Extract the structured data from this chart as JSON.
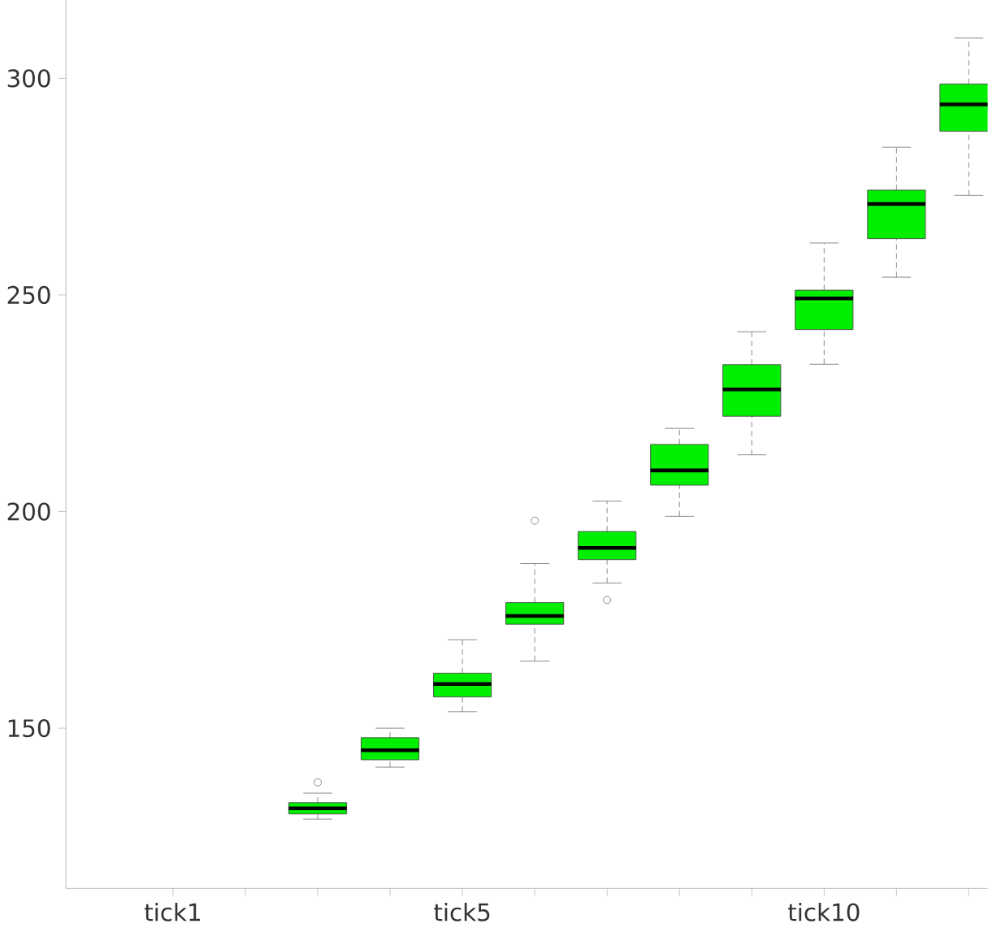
{
  "chart_data": {
    "type": "box",
    "categories": [
      "tick1",
      null,
      null,
      null,
      "tick5",
      null,
      null,
      null,
      null,
      "tick10",
      null,
      null
    ],
    "color": "#00ee00",
    "boxes": [
      null,
      null,
      {
        "low": 129,
        "q1": 130.2,
        "median": 131.5,
        "q3": 132.8,
        "high": 135,
        "outliers": [
          137.5
        ]
      },
      {
        "low": 141,
        "q1": 142.7,
        "median": 144.9,
        "q3": 147.8,
        "high": 150
      },
      {
        "low": 153.8,
        "q1": 157.2,
        "median": 160.2,
        "q3": 162.7,
        "high": 170.4
      },
      {
        "low": 165.5,
        "q1": 174,
        "median": 175.9,
        "q3": 179,
        "high": 188,
        "outliers": [
          197.9
        ]
      },
      {
        "low": 183.5,
        "q1": 188.9,
        "median": 191.6,
        "q3": 195.4,
        "high": 202.4,
        "outliers": [
          179.6
        ]
      },
      {
        "low": 198.9,
        "q1": 206.1,
        "median": 209.5,
        "q3": 215.5,
        "high": 219.2
      },
      {
        "low": 213.1,
        "q1": 222,
        "median": 228.2,
        "q3": 233.9,
        "high": 241.5
      },
      {
        "low": 234,
        "q1": 242,
        "median": 249.2,
        "q3": 251.1,
        "high": 262
      },
      {
        "low": 254.1,
        "q1": 263,
        "median": 271,
        "q3": 274.2,
        "high": 284.1
      },
      {
        "low": 273,
        "q1": 287.8,
        "median": 294,
        "q3": 298.7,
        "high": 309.3
      }
    ],
    "ylim": [
      113,
      318
    ],
    "yticks": [
      150,
      200,
      250,
      300
    ],
    "grid": false
  }
}
